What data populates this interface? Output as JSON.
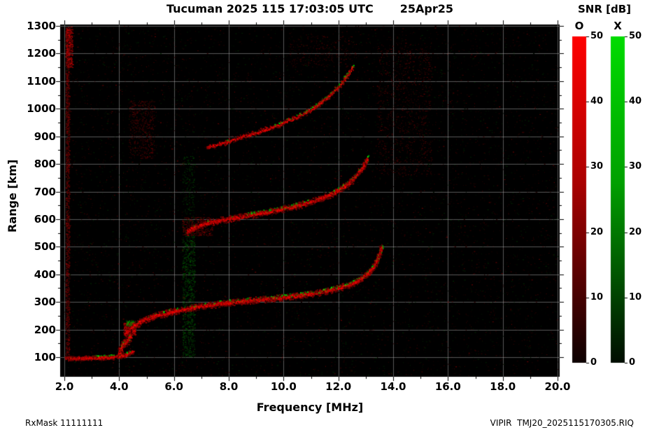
{
  "header": {
    "title": "Tucuman 2025 115 17:03:05 UTC",
    "date": "25Apr25"
  },
  "footer": {
    "left": "RxMask 11111111",
    "right": "VIPIR  TMJ20_2025115170305.RIQ"
  },
  "colorbar": {
    "title": "SNR [dB]",
    "o_label": "O",
    "x_label": "X",
    "min": 0,
    "max": 50,
    "ticks": [
      0,
      10,
      20,
      30,
      40,
      50
    ],
    "o_colors": [
      "#ff0000",
      "#aa0000",
      "#0d0000"
    ],
    "x_colors": [
      "#00dc00",
      "#00a000",
      "#000d00"
    ]
  },
  "chart_data": {
    "type": "scatter",
    "title": "Tucuman 2025 115 17:03:05 UTC   25Apr25",
    "xlabel": "Frequency [MHz]",
    "ylabel": "Range [km]",
    "xlim": [
      2.0,
      20.0
    ],
    "ylim": [
      100,
      1300
    ],
    "grid": true,
    "background": "#000000",
    "grid_color": "rgba(175,175,175,0.5)",
    "x_minor_step": 1,
    "y_minor_step": 50,
    "x_ticks": [
      {
        "v": 2,
        "label": "2.0"
      },
      {
        "v": 4,
        "label": "4.0"
      },
      {
        "v": 6,
        "label": "6.0"
      },
      {
        "v": 8,
        "label": "8.0"
      },
      {
        "v": 10,
        "label": "10.0"
      },
      {
        "v": 12,
        "label": "12.0"
      },
      {
        "v": 14,
        "label": "14.0"
      },
      {
        "v": 16,
        "label": "16.0"
      },
      {
        "v": 18,
        "label": "18.0"
      },
      {
        "v": 20,
        "label": "20.0"
      }
    ],
    "y_ticks": [
      100,
      200,
      300,
      400,
      500,
      600,
      700,
      800,
      900,
      1000,
      1100,
      1200,
      1300
    ],
    "traces": [
      {
        "name": "E-layer",
        "points": [
          [
            2.05,
            97
          ],
          [
            2.6,
            98
          ],
          [
            3.2,
            99
          ],
          [
            3.7,
            101
          ],
          [
            4.0,
            104
          ],
          [
            4.3,
            112
          ],
          [
            4.5,
            122
          ]
        ],
        "thickness": 4,
        "density": 2.6,
        "green": [
          [
            3.0,
            4.5,
            0.3
          ]
        ]
      },
      {
        "name": "Es-blob",
        "points": [
          [
            3.95,
            112
          ],
          [
            4.05,
            131
          ],
          [
            4.15,
            149
          ],
          [
            4.28,
            163
          ],
          [
            4.42,
            175
          ]
        ],
        "thickness": 9,
        "density": 2.4,
        "green": [
          [
            3.95,
            4.42,
            0.45
          ]
        ]
      },
      {
        "name": "F-region-1st-hop",
        "points": [
          [
            4.2,
            188
          ],
          [
            4.5,
            214
          ],
          [
            4.9,
            236
          ],
          [
            5.4,
            254
          ],
          [
            6.0,
            268
          ],
          [
            6.6,
            279
          ],
          [
            7.2,
            289
          ],
          [
            8.0,
            299
          ],
          [
            8.8,
            307
          ],
          [
            9.6,
            314
          ],
          [
            10.4,
            323
          ],
          [
            11.0,
            331
          ],
          [
            11.6,
            342
          ],
          [
            12.0,
            352
          ],
          [
            12.4,
            364
          ],
          [
            12.7,
            378
          ],
          [
            12.95,
            394
          ],
          [
            13.15,
            412
          ],
          [
            13.3,
            432
          ],
          [
            13.42,
            455
          ],
          [
            13.5,
            478
          ],
          [
            13.56,
            500
          ]
        ],
        "thickness": 6,
        "density": 2.3,
        "green": [
          [
            4.2,
            7.8,
            0.1
          ],
          [
            7.8,
            8.7,
            0.45
          ],
          [
            8.7,
            9.4,
            0.12
          ],
          [
            9.4,
            12.6,
            0.38
          ],
          [
            12.6,
            13.56,
            0.42
          ]
        ]
      },
      {
        "name": "F-region-2nd-hop",
        "points": [
          [
            6.45,
            556
          ],
          [
            6.8,
            573
          ],
          [
            7.2,
            587
          ],
          [
            7.7,
            598
          ],
          [
            8.3,
            608
          ],
          [
            9.0,
            620
          ],
          [
            9.7,
            633
          ],
          [
            10.3,
            645
          ],
          [
            10.9,
            661
          ],
          [
            11.4,
            678
          ],
          [
            11.9,
            700
          ],
          [
            12.25,
            722
          ],
          [
            12.55,
            748
          ],
          [
            12.8,
            778
          ],
          [
            12.95,
            800
          ],
          [
            13.05,
            822
          ]
        ],
        "thickness": 6,
        "density": 2.1,
        "green": [
          [
            8.6,
            10.5,
            0.5
          ],
          [
            10.5,
            11.9,
            0.22
          ],
          [
            11.9,
            13.05,
            0.45
          ]
        ]
      },
      {
        "name": "F-region-3rd-hop",
        "points": [
          [
            7.2,
            860
          ],
          [
            7.8,
            878
          ],
          [
            8.4,
            897
          ],
          [
            9.1,
            918
          ],
          [
            9.8,
            943
          ],
          [
            10.5,
            972
          ],
          [
            11.1,
            1005
          ],
          [
            11.6,
            1043
          ],
          [
            12.0,
            1082
          ],
          [
            12.3,
            1120
          ],
          [
            12.5,
            1152
          ]
        ],
        "thickness": 5,
        "density": 1.0,
        "green": [
          [
            9.6,
            11.2,
            0.4
          ],
          [
            11.2,
            12.5,
            0.6
          ]
        ]
      }
    ],
    "noise": [
      {
        "f": [
          2.04,
          2.18
        ],
        "km": [
          100,
          1295
        ],
        "color": "red",
        "count": 1500,
        "bright": [
          50,
          150
        ]
      },
      {
        "f": [
          2.04,
          2.3
        ],
        "km": [
          1150,
          1298
        ],
        "color": "red",
        "count": 350,
        "bright": [
          110,
          220
        ]
      },
      {
        "f": [
          6.3,
          6.75
        ],
        "km": [
          100,
          540
        ],
        "color": "green",
        "count": 800,
        "bright": [
          35,
          100
        ]
      },
      {
        "f": [
          6.3,
          6.75
        ],
        "km": [
          540,
          830
        ],
        "color": "green",
        "count": 220,
        "bright": [
          28,
          75
        ]
      },
      {
        "f": [
          4.35,
          5.3
        ],
        "km": [
          820,
          1030
        ],
        "color": "red",
        "count": 480,
        "bright": [
          35,
          110
        ]
      },
      {
        "f": [
          13.4,
          15.4
        ],
        "km": [
          760,
          1240
        ],
        "color": "red",
        "count": 900,
        "bright": [
          28,
          95
        ]
      },
      {
        "f": [
          6.3,
          7.4
        ],
        "km": [
          540,
          608
        ],
        "color": "red",
        "count": 380,
        "bright": [
          50,
          140
        ]
      },
      {
        "f": [
          10.2,
          12.6
        ],
        "km": [
          1150,
          1265
        ],
        "color": "red",
        "count": 240,
        "bright": [
          28,
          85
        ]
      },
      {
        "f": [
          4.15,
          4.6
        ],
        "km": [
          180,
          228
        ],
        "color": "red",
        "count": 320,
        "bright": [
          120,
          255
        ]
      },
      {
        "f": [
          4.25,
          4.6
        ],
        "km": [
          208,
          235
        ],
        "color": "green",
        "count": 90,
        "bright": [
          80,
          200
        ]
      },
      {
        "f": [
          2.0,
          20.0
        ],
        "km": [
          30,
          1300
        ],
        "color": "red",
        "count": 5200,
        "bright": [
          15,
          60
        ]
      },
      {
        "f": [
          2.0,
          20.0
        ],
        "km": [
          30,
          1300
        ],
        "color": "green",
        "count": 2600,
        "bright": [
          12,
          48
        ]
      },
      {
        "f": [
          2.0,
          20.0
        ],
        "km": [
          30,
          1300
        ],
        "color": "red",
        "count": 420,
        "bright": [
          60,
          130
        ]
      }
    ]
  }
}
